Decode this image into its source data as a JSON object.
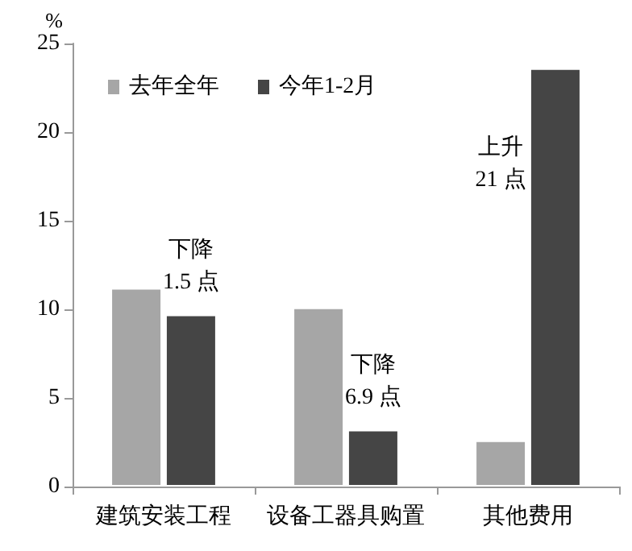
{
  "chart_data": {
    "type": "bar",
    "ylabel": "%",
    "categories": [
      "建筑安装工程",
      "设备工器具购置",
      "其他费用"
    ],
    "series": [
      {
        "name": "去年全年",
        "color": "#a6a6a6",
        "values": [
          11.2,
          10.1,
          2.6
        ]
      },
      {
        "name": "今年1-2月",
        "color": "#454545",
        "values": [
          9.7,
          3.2,
          23.6
        ]
      }
    ],
    "ylim": [
      0,
      25
    ],
    "yticks": [
      0,
      5,
      10,
      15,
      20,
      25
    ],
    "grid": false,
    "legend": "top left",
    "annotations": [
      "下降\n1.5 点",
      "下降\n6.9 点",
      "上升\n21 点"
    ]
  }
}
